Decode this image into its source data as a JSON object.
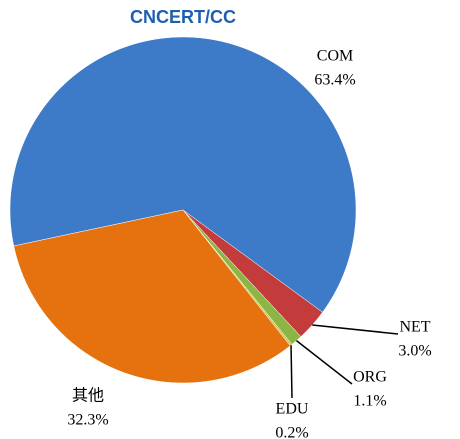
{
  "chart_data": {
    "type": "pie",
    "title": "CNCERT/CC",
    "categories": [
      "COM",
      "NET",
      "ORG",
      "EDU",
      "其他"
    ],
    "values": [
      63.4,
      3.0,
      1.1,
      0.2,
      32.3
    ],
    "value_labels": [
      "63.4%",
      "3.0%",
      "1.1%",
      "0.2%",
      "32.3%"
    ],
    "colors": [
      "#3d7bc8",
      "#c33b3b",
      "#8db545",
      "#c8c84a",
      "#e5720f"
    ]
  }
}
